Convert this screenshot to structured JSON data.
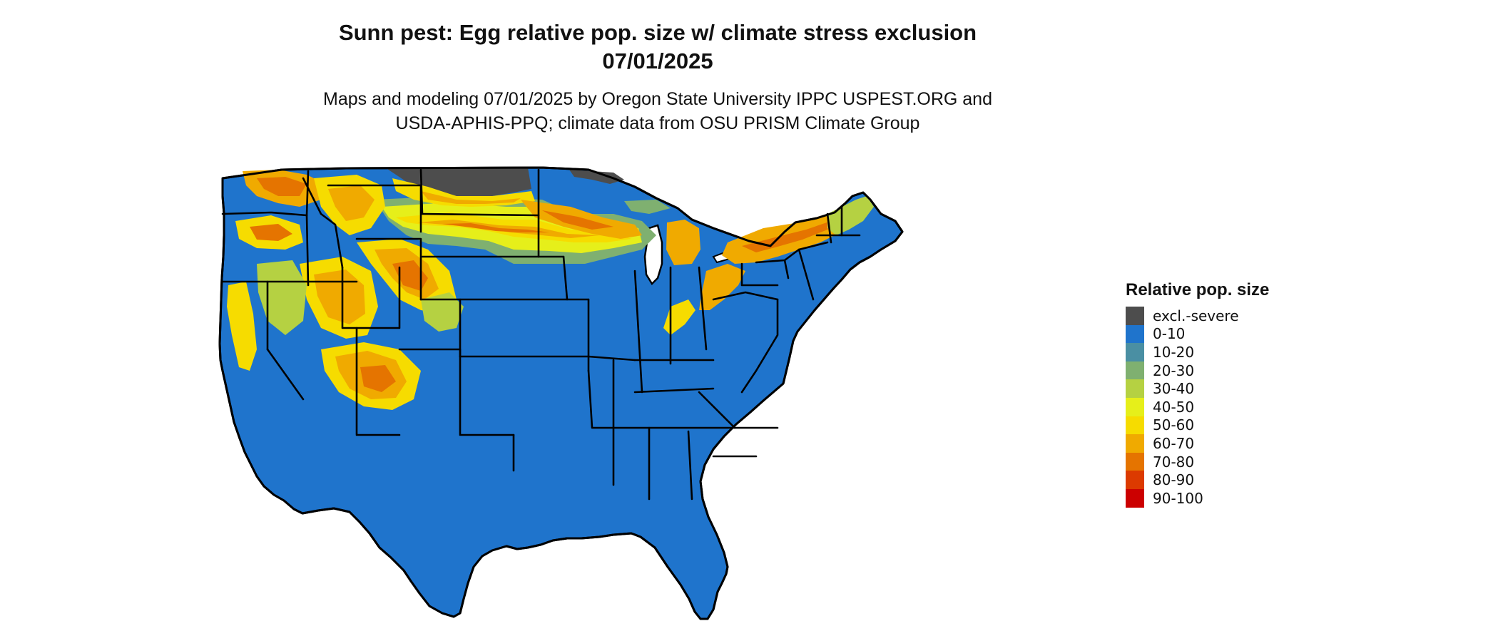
{
  "title_line1": "Sunn pest: Egg relative pop. size w/ climate stress exclusion",
  "title_line2": "07/01/2025",
  "subtitle_line1": "Maps and modeling 07/01/2025 by Oregon State University IPPC USPEST.ORG and",
  "subtitle_line2": "USDA-APHIS-PPQ; climate data from OSU PRISM Climate Group",
  "legend": {
    "title": "Relative pop. size",
    "items": [
      {
        "label": "excl.-severe",
        "color": "#4d4d4d"
      },
      {
        "label": "0-10",
        "color": "#1f74cc"
      },
      {
        "label": "10-20",
        "color": "#4a8fa3"
      },
      {
        "label": "20-30",
        "color": "#7fb070"
      },
      {
        "label": "30-40",
        "color": "#b5d142"
      },
      {
        "label": "40-50",
        "color": "#e6ef1a"
      },
      {
        "label": "50-60",
        "color": "#f6dc00"
      },
      {
        "label": "60-70",
        "color": "#f0aa00"
      },
      {
        "label": "70-80",
        "color": "#e57400"
      },
      {
        "label": "80-90",
        "color": "#dc3a00"
      },
      {
        "label": "90-100",
        "color": "#cc0000"
      }
    ]
  }
}
